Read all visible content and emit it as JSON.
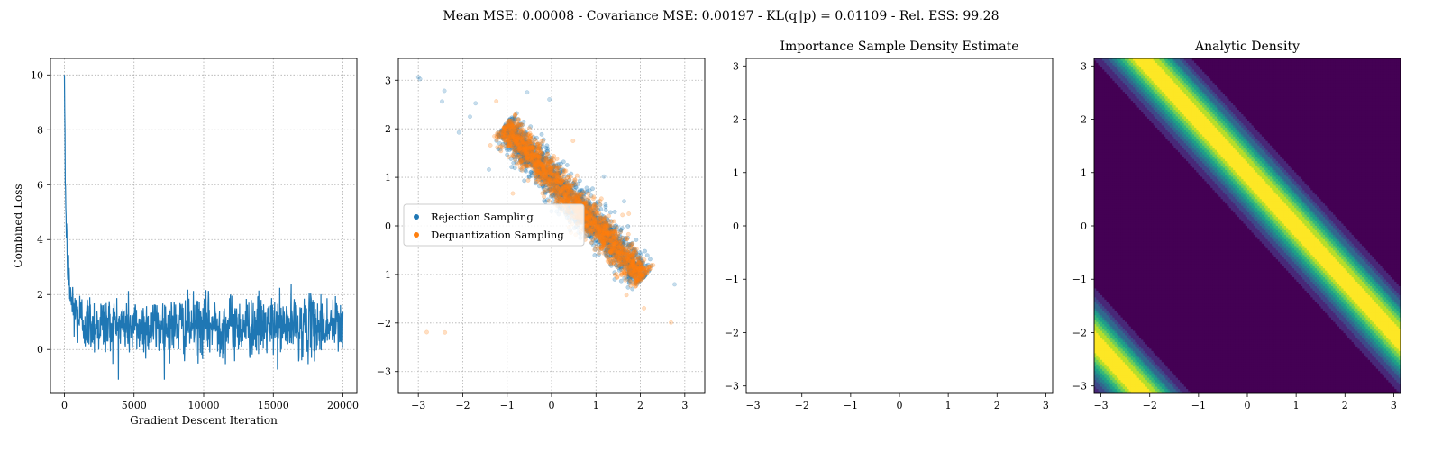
{
  "suptitle": "Mean MSE: 0.00008 - Covariance MSE: 0.00197 - KL(q‖p) = 0.01109 - Rel. ESS: 99.28",
  "colors": {
    "blue": "#1f77b4",
    "orange": "#ff7f0e",
    "viridis": [
      "#440154",
      "#482878",
      "#3e4989",
      "#31688e",
      "#26828e",
      "#1f9e89",
      "#35b779",
      "#6ece58",
      "#b5de2b",
      "#fde725"
    ]
  },
  "chart_data": [
    {
      "type": "line",
      "title": "",
      "xlabel": "Gradient Descent Iteration",
      "ylabel": "Combined Loss",
      "xlim": [
        -1000,
        21000
      ],
      "ylim": [
        -1.6,
        10.6
      ],
      "xticks": [
        0,
        5000,
        10000,
        15000,
        20000
      ],
      "xtick_labels": [
        "0",
        "5000",
        "10000",
        "15000",
        "20000"
      ],
      "yticks": [
        0,
        2,
        4,
        6,
        8,
        10
      ],
      "ytick_labels": [
        "0",
        "2",
        "4",
        "6",
        "8",
        "10"
      ],
      "grid": true,
      "series": [
        {
          "color": "#1f77b4",
          "x": [
            0,
            30,
            60,
            100,
            150,
            200,
            250,
            300,
            400,
            500,
            700,
            1000,
            1500,
            2000,
            3000,
            5000,
            8000,
            10000,
            12000,
            15000,
            18000,
            20000
          ],
          "y": [
            10.0,
            8.5,
            6.5,
            5.2,
            4.2,
            3.5,
            3.0,
            2.6,
            2.1,
            1.8,
            1.4,
            1.2,
            1.0,
            0.95,
            0.9,
            0.85,
            0.85,
            0.85,
            0.85,
            0.85,
            0.85,
            0.85
          ],
          "noise_band": [
            -1.1,
            3.0
          ]
        }
      ]
    },
    {
      "type": "scatter",
      "title": "",
      "xlim": [
        -3.45,
        3.45
      ],
      "ylim": [
        -3.45,
        3.45
      ],
      "xticks": [
        -3,
        -2,
        -1,
        0,
        1,
        2,
        3
      ],
      "xtick_labels": [
        "−3",
        "−2",
        "−1",
        "0",
        "1",
        "2",
        "3"
      ],
      "yticks": [
        -3,
        -2,
        -1,
        0,
        1,
        2,
        3
      ],
      "ytick_labels": [
        "−3",
        "−2",
        "−1",
        "0",
        "1",
        "2",
        "3"
      ],
      "grid": true,
      "legend_position": "center-left",
      "series": [
        {
          "name": "Rejection Sampling",
          "color": "#1f77b4"
        },
        {
          "name": "Dequantization Sampling",
          "color": "#ff7f0e"
        }
      ],
      "density": "bands along x + y ≈ 1 and x + y ≈ -3.5 (wrapped on [-π, π])"
    },
    {
      "type": "heatmap",
      "title": "Importance Sample Density Estimate",
      "xlim": [
        -3.14,
        3.14
      ],
      "ylim": [
        -3.14,
        3.14
      ],
      "xticks": [
        -3,
        -2,
        -1,
        0,
        1,
        2,
        3
      ],
      "xtick_labels": [
        "−3",
        "−2",
        "−1",
        "0",
        "1",
        "2",
        "3"
      ],
      "yticks": [
        -3,
        -2,
        -1,
        0,
        1,
        2,
        3
      ],
      "ytick_labels": [
        "−3",
        "−2",
        "−1",
        "0",
        "1",
        "2",
        "3"
      ],
      "grid": false,
      "empty": true
    },
    {
      "type": "heatmap",
      "title": "Analytic Density",
      "xlim": [
        -3.14,
        3.14
      ],
      "ylim": [
        -3.14,
        3.14
      ],
      "xticks": [
        -3,
        -2,
        -1,
        0,
        1,
        2,
        3
      ],
      "xtick_labels": [
        "−3",
        "−2",
        "−1",
        "0",
        "1",
        "2",
        "3"
      ],
      "yticks": [
        -3,
        -2,
        -1,
        0,
        1,
        2,
        3
      ],
      "ytick_labels": [
        "−3",
        "−2",
        "−1",
        "0",
        "1",
        "2",
        "3"
      ],
      "grid": false,
      "band_centers": [
        1.0,
        -5.28
      ],
      "band_sigma": 0.33
    }
  ]
}
